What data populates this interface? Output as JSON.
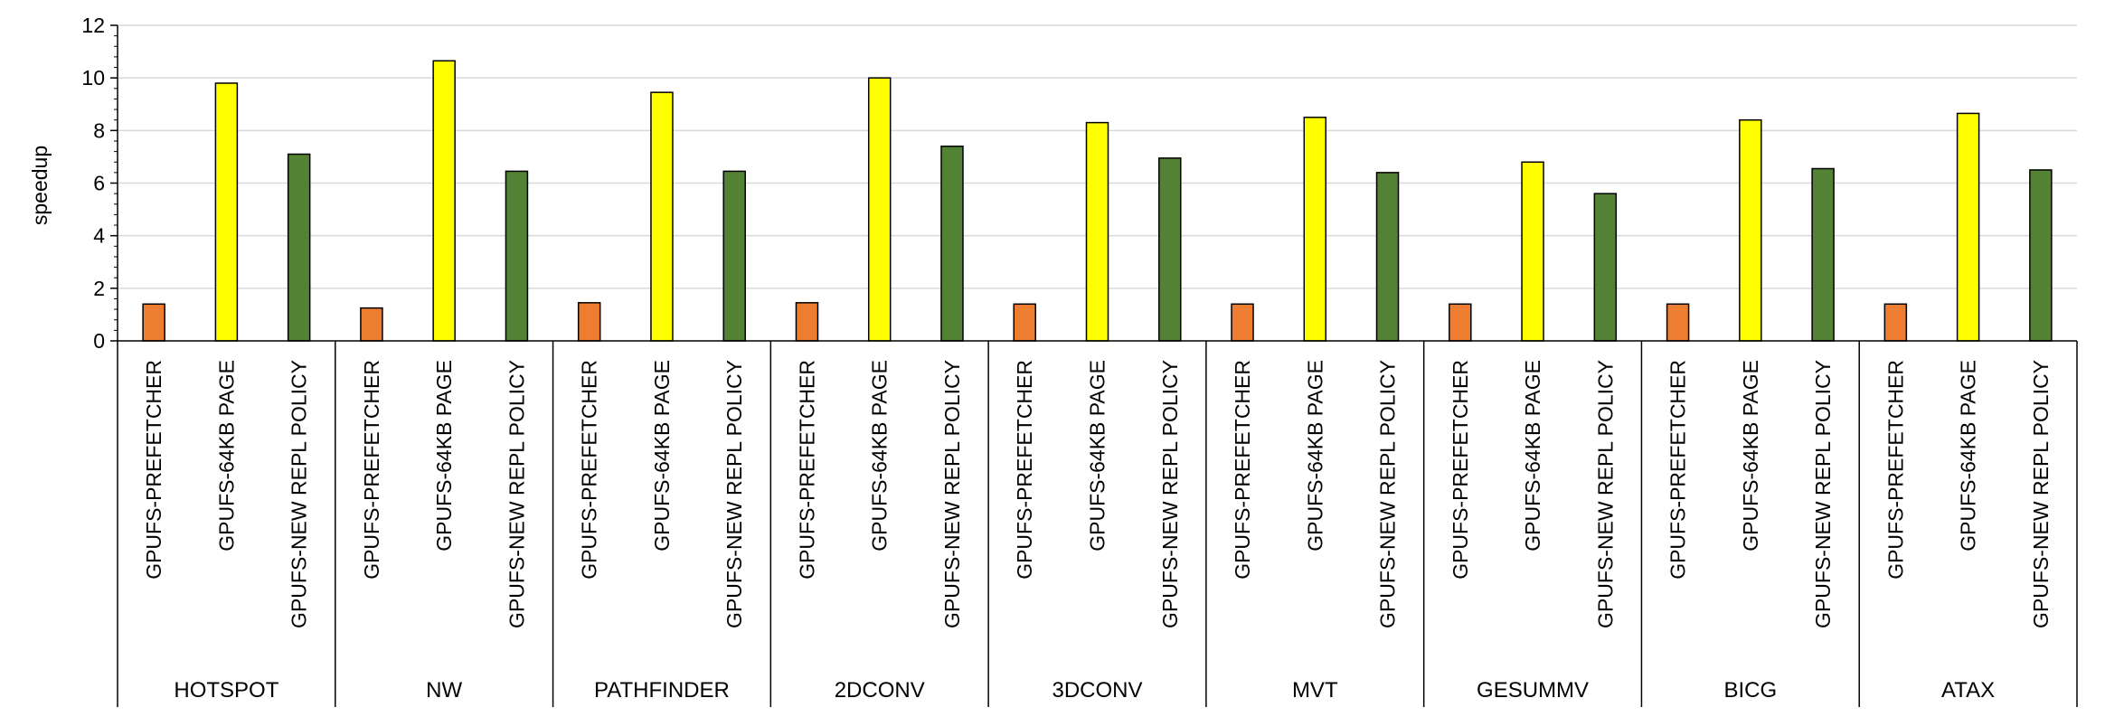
{
  "chart_data": {
    "type": "bar",
    "ylabel": "speedup",
    "xlabel": "",
    "ylim": [
      0,
      12
    ],
    "yticks": [
      0,
      2,
      4,
      6,
      8,
      10,
      12
    ],
    "grid": true,
    "groups": [
      "HOTSPOT",
      "NW",
      "PATHFINDER",
      "2DCONV",
      "3DCONV",
      "MVT",
      "GESUMMV",
      "BICG",
      "ATAX"
    ],
    "categories": [
      "GPUFS-PREFETCHER",
      "GPUFS-64KB PAGE",
      "GPUFS-NEW REPL POLICY"
    ],
    "colors": [
      "#ED7D31",
      "#FFFF00",
      "#548235"
    ],
    "values": [
      [
        1.4,
        9.8,
        7.1
      ],
      [
        1.25,
        10.65,
        6.45
      ],
      [
        1.45,
        9.45,
        6.45
      ],
      [
        1.45,
        10.0,
        7.4
      ],
      [
        1.4,
        8.3,
        6.95
      ],
      [
        1.4,
        8.5,
        6.4
      ],
      [
        1.4,
        6.8,
        5.6
      ],
      [
        1.4,
        8.4,
        6.55
      ],
      [
        1.4,
        8.65,
        6.5
      ]
    ]
  }
}
